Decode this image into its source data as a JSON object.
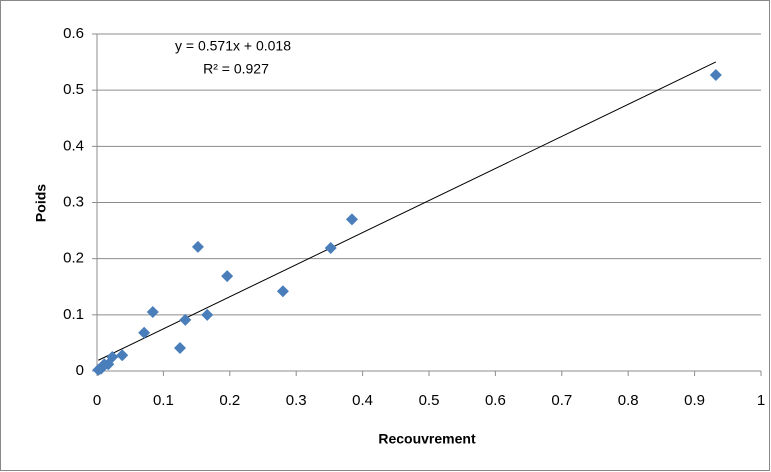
{
  "chart_data": {
    "type": "scatter",
    "x_label": "Recouvrement",
    "y_label": "Poids",
    "x": [
      0.932,
      0.384,
      0.352,
      0.28,
      0.196,
      0.152,
      0.166,
      0.133,
      0.125,
      0.084,
      0.071,
      0.038,
      0.023,
      0.017,
      0.011,
      0.006,
      0.002
    ],
    "values": [
      0.527,
      0.27,
      0.219,
      0.142,
      0.169,
      0.221,
      0.1,
      0.091,
      0.041,
      0.105,
      0.068,
      0.028,
      0.025,
      0.012,
      0.012,
      0.004,
      0.002
    ],
    "color": "#4a7ebb",
    "trendline": {
      "equation": "y = 0.571x + 0.018",
      "r2_label": "R² = 0.927",
      "slope": 0.571,
      "intercept": 0.018
    },
    "xlim": [
      0,
      1
    ],
    "xticks": [
      0,
      0.1,
      0.2,
      0.3,
      0.4,
      0.5,
      0.6,
      0.7,
      0.8,
      0.9,
      1
    ],
    "ylim": [
      0,
      0.6
    ],
    "yticks": [
      0,
      0.1,
      0.2,
      0.3,
      0.4,
      0.5,
      0.6
    ],
    "grid": true
  }
}
